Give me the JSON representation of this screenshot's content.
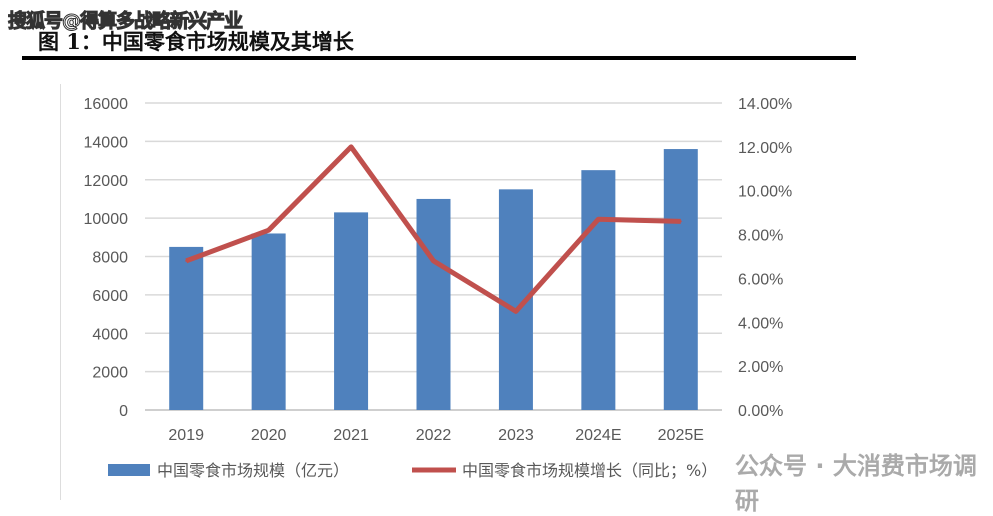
{
  "watermark": "搜狐号@得算多战略新兴产业",
  "figure_title": "图 1：中国零食市场规模及其增长",
  "footer_watermark": "公众号 · 大消费市场调研",
  "chart_data": {
    "type": "bar+line",
    "categories": [
      "2019",
      "2020",
      "2021",
      "2022",
      "2023",
      "2024E",
      "2025E"
    ],
    "series": [
      {
        "name": "中国零食市场规模（亿元）",
        "type": "bar",
        "axis": "left",
        "color": "#4f81bd",
        "values": [
          8500,
          9200,
          10300,
          11000,
          11500,
          12500,
          13600
        ]
      },
      {
        "name": "中国零食市场规模增长（同比；%）",
        "type": "line",
        "axis": "right",
        "color": "#c0504d",
        "values": [
          6.8,
          8.2,
          12.0,
          6.8,
          4.5,
          8.7,
          8.6
        ]
      }
    ],
    "left_axis": {
      "ylim": [
        0,
        16000
      ],
      "ticks": [
        "0",
        "2000",
        "4000",
        "6000",
        "8000",
        "10000",
        "12000",
        "14000",
        "16000"
      ]
    },
    "right_axis": {
      "ylim": [
        0,
        14
      ],
      "ticks": [
        "0.00%",
        "2.00%",
        "4.00%",
        "6.00%",
        "8.00%",
        "10.00%",
        "12.00%",
        "14.00%"
      ]
    },
    "grid": true,
    "legend": "bottom"
  }
}
